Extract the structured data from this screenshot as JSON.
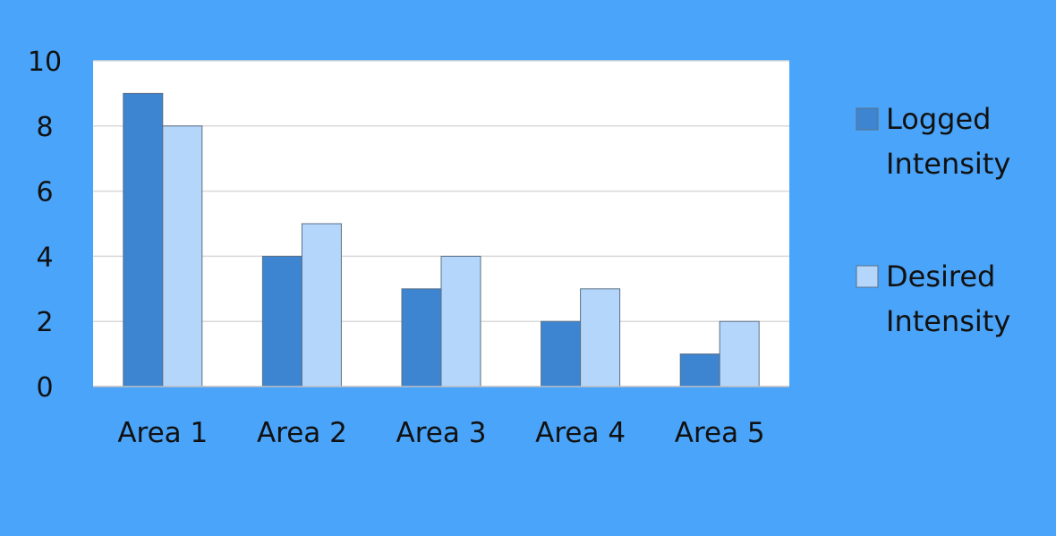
{
  "chart_data": {
    "type": "bar",
    "categories": [
      "Area 1",
      "Area 2",
      "Area 3",
      "Area 4",
      "Area 5"
    ],
    "series": [
      {
        "name": "Logged Intensity",
        "values": [
          9,
          4,
          3,
          2,
          1
        ],
        "color": "#3d85d0",
        "legend_lines": [
          "Logged",
          "Intensity"
        ]
      },
      {
        "name": "Desired Intensity",
        "values": [
          8,
          5,
          4,
          3,
          2
        ],
        "color": "#b5d6fb",
        "legend_lines": [
          "Desired",
          "Intensity"
        ]
      }
    ],
    "yticks": [
      "0",
      "2",
      "4",
      "6",
      "8",
      "10"
    ],
    "ylim": [
      0,
      10
    ],
    "title": "",
    "xlabel": "",
    "ylabel": "",
    "grid": true,
    "legend_position": "right",
    "background_color": "#4aa4f9",
    "plot_background": "#ffffff"
  }
}
